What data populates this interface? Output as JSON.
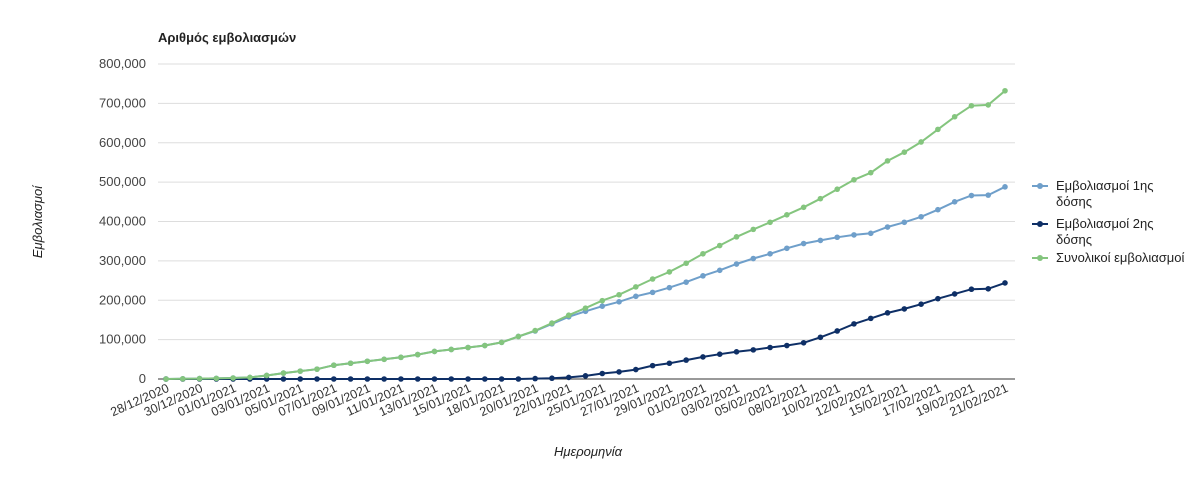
{
  "chart_data": {
    "type": "line",
    "title": "Αριθμός εμβολιασμών",
    "xlabel": "Ημερομηνία",
    "ylabel": "Εμβολιασμοί",
    "ylim": [
      0,
      800000
    ],
    "yticks": [
      "0",
      "100,000",
      "200,000",
      "300,000",
      "400,000",
      "500,000",
      "600,000",
      "700,000",
      "800,000"
    ],
    "grid": true,
    "legend_position": "right",
    "x_tick_labels": [
      "28/12/2020",
      "30/12/2020",
      "01/01/2021",
      "03/01/2021",
      "05/01/2021",
      "07/01/2021",
      "09/01/2021",
      "11/01/2021",
      "13/01/2021",
      "15/01/2021",
      "18/01/2021",
      "20/01/2021",
      "22/01/2021",
      "25/01/2021",
      "27/01/2021",
      "29/01/2021",
      "01/02/2021",
      "03/02/2021",
      "05/02/2021",
      "08/02/2021",
      "10/02/2021",
      "12/02/2021",
      "15/02/2021",
      "17/02/2021",
      "19/02/2021",
      "21/02/2021"
    ],
    "series": [
      {
        "name_lines": [
          "Εμβολιασμοί 1ης",
          "δόσης"
        ],
        "color": "#6f9fca",
        "values": [
          0,
          500,
          1000,
          1500,
          2500,
          4000,
          9000,
          15000,
          20000,
          25000,
          35000,
          40000,
          45000,
          50000,
          55000,
          62000,
          70000,
          75000,
          80000,
          85000,
          93000,
          108000,
          122000,
          140000,
          158000,
          172000,
          185000,
          196000,
          210000,
          220000,
          232000,
          246000,
          262000,
          276000,
          292000,
          306000,
          318000,
          332000,
          344000,
          352000,
          360000,
          366000,
          370000,
          386000,
          398000,
          412000,
          430000,
          450000,
          466000,
          467000,
          488000
        ]
      },
      {
        "name_lines": [
          "Εμβολιασμοί 2ης",
          "δόσης"
        ],
        "color": "#0e2f66",
        "values": [
          0,
          0,
          0,
          0,
          0,
          0,
          0,
          0,
          0,
          0,
          0,
          0,
          0,
          0,
          0,
          0,
          0,
          0,
          0,
          0,
          0,
          0,
          1000,
          2000,
          4000,
          8000,
          14000,
          18000,
          24000,
          34000,
          40000,
          48000,
          56000,
          63000,
          69000,
          74000,
          80000,
          85000,
          92000,
          106000,
          122000,
          140000,
          154000,
          168000,
          178000,
          190000,
          204000,
          216000,
          228000,
          229000,
          244000
        ]
      },
      {
        "name_lines": [
          "Συνολικοί εμβολιασμοί"
        ],
        "color": "#84c57e",
        "values": [
          0,
          500,
          1000,
          1500,
          2500,
          4000,
          9000,
          15000,
          20000,
          25000,
          35000,
          40000,
          45000,
          50000,
          55000,
          62000,
          70000,
          75000,
          80000,
          85000,
          93000,
          108000,
          123000,
          142000,
          162000,
          180000,
          199000,
          214000,
          234000,
          254000,
          272000,
          294000,
          318000,
          339000,
          361000,
          380000,
          398000,
          417000,
          436000,
          458000,
          482000,
          506000,
          524000,
          554000,
          576000,
          602000,
          634000,
          666000,
          694000,
          696000,
          732000
        ]
      }
    ]
  }
}
